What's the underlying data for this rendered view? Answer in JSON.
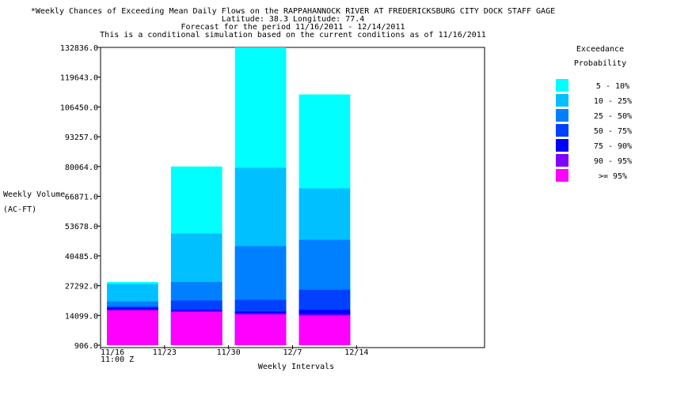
{
  "chart_data": {
    "type": "bar",
    "title_lines": [
      "*Weekly Chances of Exceeding Mean Daily Flows on the RAPPAHANNOCK RIVER AT FREDERICKSBURG CITY DOCK STAFF GAGE",
      "Latitude: 38.3    Longitude:  77.4",
      "Forecast for the period 11/16/2011 - 12/14/2011",
      "This is a conditional simulation based on the current conditions as of 11/16/2011"
    ],
    "ylabel_lines": [
      "Weekly Volume",
      "(AC-FT)"
    ],
    "xlabel": "Weekly Intervals",
    "ylim": [
      906.0,
      132836.0
    ],
    "y_ticks": [
      906.0,
      14099.0,
      27292.0,
      40485.0,
      53678.0,
      66871.0,
      80064.0,
      93257.0,
      106450.0,
      119643.0,
      132836.0
    ],
    "y_tick_labels": [
      "906.0",
      "14099.0",
      "27292.0",
      "40485.0",
      "53678.0",
      "66871.0",
      "80064.0",
      "93257.0",
      "106450.0",
      "119643.0",
      "132836.0"
    ],
    "x_ticks": [
      "11/16",
      "11/23",
      "11/30",
      "12/7",
      "12/14"
    ],
    "x_sublabel": "11:00 Z",
    "legend_title_lines": [
      "Exceedance",
      "Probability"
    ],
    "legend_position": "right",
    "categories": [
      "11/16 - 11/23",
      "11/23 - 11/30",
      "11/30 - 12/7",
      "12/7 - 12/14"
    ],
    "series": [
      {
        "name": ">= 95%",
        "color": "#ff00ff",
        "values": [
          16300,
          15600,
          14500,
          14000
        ]
      },
      {
        "name": "90 - 95%",
        "color": "#8000ff",
        "values": [
          16800,
          16200,
          15100,
          14600
        ]
      },
      {
        "name": "75 - 90%",
        "color": "#0000ff",
        "values": [
          17500,
          16600,
          15900,
          16600
        ]
      },
      {
        "name": "50 - 75%",
        "color": "#0040ff",
        "values": [
          18100,
          20700,
          21000,
          25500
        ]
      },
      {
        "name": "25 - 50%",
        "color": "#0080ff",
        "values": [
          20300,
          28900,
          44800,
          47600
        ]
      },
      {
        "name": "10 - 25%",
        "color": "#00c0ff",
        "values": [
          28000,
          50400,
          79500,
          70400
        ]
      },
      {
        "name": "5 - 10%",
        "color": "#00ffff",
        "values": [
          28900,
          80100,
          132836,
          112000
        ]
      }
    ]
  }
}
